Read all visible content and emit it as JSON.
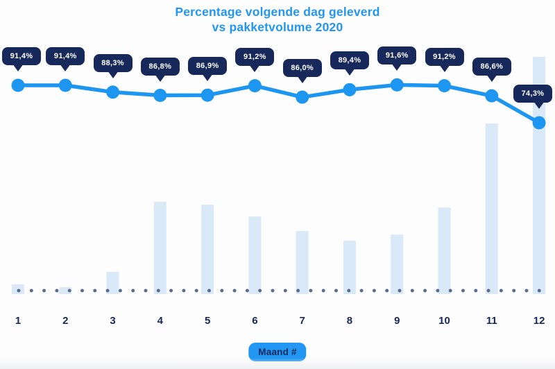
{
  "title": {
    "line1": "Percentage volgende dag geleverd",
    "line2": "vs pakketvolume 2020"
  },
  "chart_data": {
    "type": "combo-line-bar",
    "title": "Percentage volgende dag geleverd vs pakketvolume 2020",
    "x": [
      1,
      2,
      3,
      4,
      5,
      6,
      7,
      8,
      9,
      10,
      11,
      12
    ],
    "xlabel": "Maand #",
    "legend": "none",
    "grid": "none",
    "baseline_style": "dotted",
    "series": [
      {
        "name": "Percentage volgende dag geleverd",
        "type": "line",
        "unit": "%",
        "values": [
          91.4,
          91.4,
          88.3,
          86.8,
          86.9,
          91.2,
          86.0,
          89.4,
          91.6,
          91.2,
          86.6,
          74.3
        ],
        "point_labels": [
          "91,4%",
          "91,4%",
          "88,3%",
          "86,8%",
          "86,9%",
          "91,2%",
          "86,0%",
          "89,4%",
          "91,6%",
          "91,2%",
          "86,6%",
          "74,3%"
        ]
      },
      {
        "name": "Pakketvolume 2020",
        "type": "bar",
        "unit": "relative index (max month = 100)",
        "values": [
          4.1,
          2.9,
          9.4,
          38.9,
          37.7,
          32.7,
          26.6,
          22.5,
          25.1,
          36.5,
          71.9,
          100
        ]
      }
    ]
  },
  "colors": {
    "accent_blue": "#1d96f2",
    "title_blue": "#2196f3",
    "badge_navy": "#16295a",
    "bar_light_blue": "#dae9f8",
    "baseline_dot_gray": "#5a6c90",
    "axis_text_navy": "#16295a",
    "background": "#fdfdfe"
  }
}
